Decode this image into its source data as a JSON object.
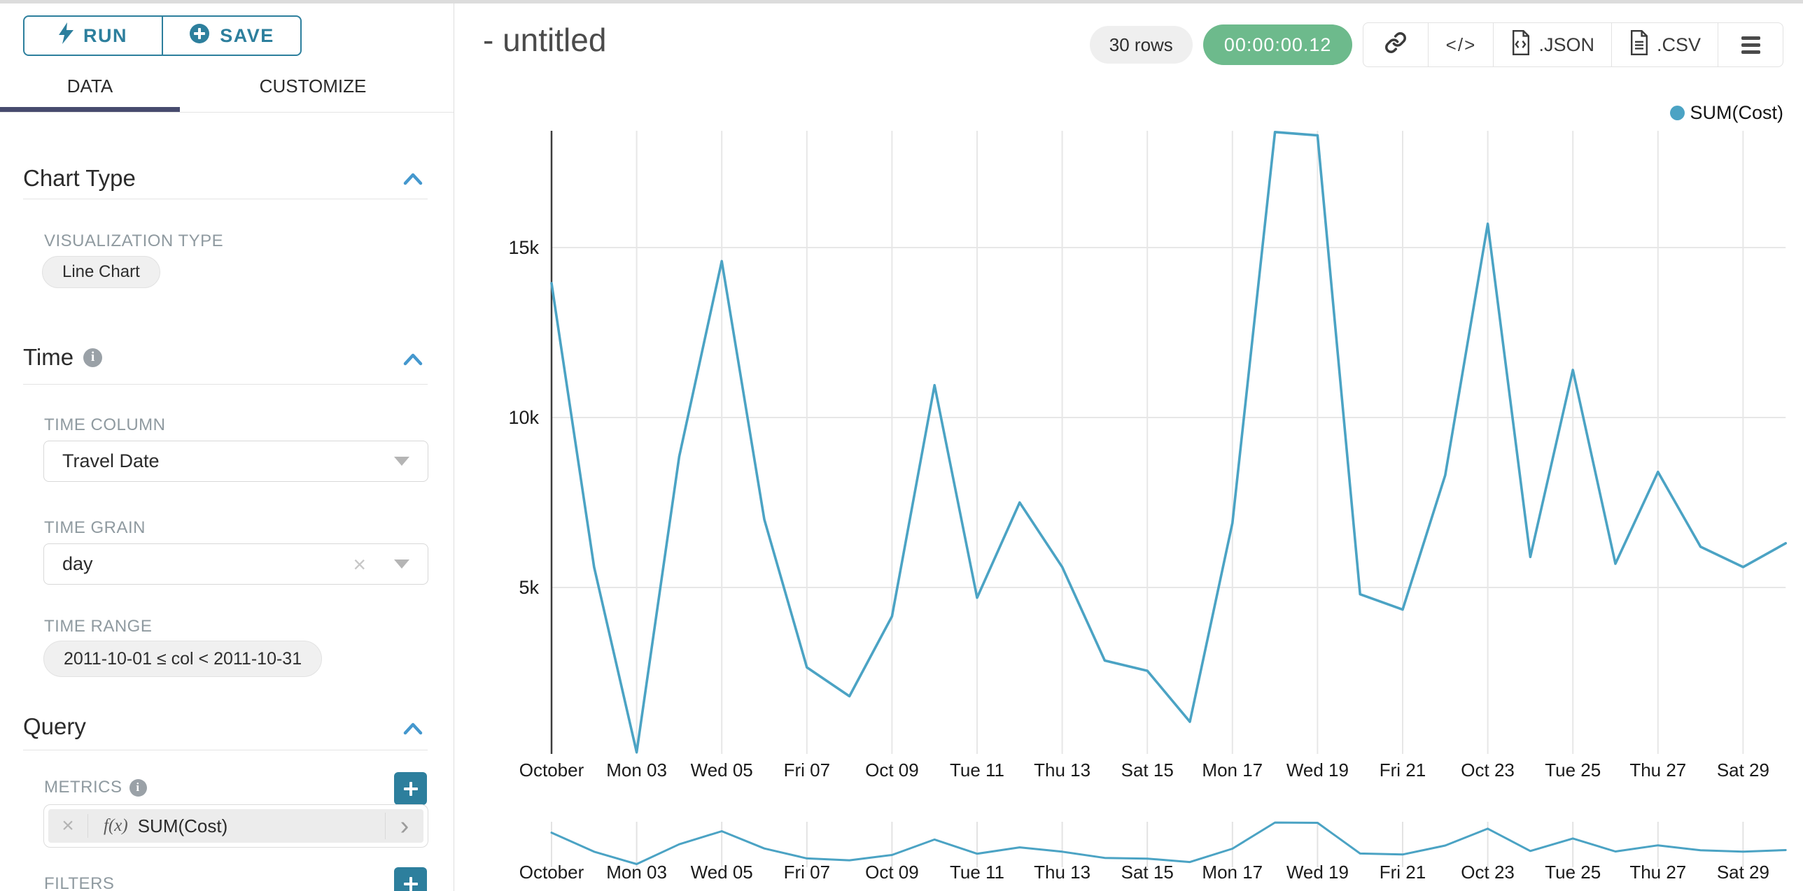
{
  "sidebar": {
    "run_label": "RUN",
    "save_label": "SAVE",
    "tabs": [
      {
        "label": "DATA"
      },
      {
        "label": "CUSTOMIZE"
      }
    ],
    "chart_type_section": {
      "title": "Chart Type",
      "visualization_type_label": "VISUALIZATION TYPE",
      "visualization_type_value": "Line Chart"
    },
    "time_section": {
      "title": "Time",
      "time_column_label": "TIME COLUMN",
      "time_column_value": "Travel Date",
      "time_grain_label": "TIME GRAIN",
      "time_grain_value": "day",
      "time_range_label": "TIME RANGE",
      "time_range_value": "2011-10-01 ≤ col < 2011-10-31"
    },
    "query_section": {
      "title": "Query",
      "metrics_label": "METRICS",
      "metric_function_prefix": "f(x)",
      "metric_value": "SUM(Cost)",
      "filters_label": "FILTERS"
    }
  },
  "header": {
    "title": "- untitled",
    "rows_badge": "30 rows",
    "timer_badge": "00:00:00.12",
    "code_glyph": "</>",
    "export_json_label": ".JSON",
    "export_csv_label": ".CSV"
  },
  "legend": {
    "label": "SUM(Cost)"
  },
  "icons": {
    "clear_x": "×",
    "chevron_right": "›",
    "info": "i"
  },
  "colors": {
    "primary_teal": "#2d7f9d",
    "section_chevron_blue": "#4598ce",
    "tab_underline_navy": "#474b6e",
    "series_line": "#4ba3c4",
    "timer_green": "#6dba8c",
    "badge_gray_bg": "#efefef"
  },
  "chart_data": {
    "type": "line",
    "title": "",
    "x_dates": [
      "2011-10-01",
      "2011-10-02",
      "2011-10-03",
      "2011-10-04",
      "2011-10-05",
      "2011-10-06",
      "2011-10-07",
      "2011-10-08",
      "2011-10-09",
      "2011-10-10",
      "2011-10-11",
      "2011-10-12",
      "2011-10-13",
      "2011-10-14",
      "2011-10-15",
      "2011-10-16",
      "2011-10-17",
      "2011-10-18",
      "2011-10-19",
      "2011-10-20",
      "2011-10-21",
      "2011-10-22",
      "2011-10-23",
      "2011-10-24",
      "2011-10-25",
      "2011-10-26",
      "2011-10-27",
      "2011-10-28",
      "2011-10-29",
      "2011-10-30"
    ],
    "series": [
      {
        "name": "SUM(Cost)",
        "color": "#4ba3c4",
        "values": [
          13950,
          5600,
          150,
          8850,
          14600,
          7000,
          2650,
          1800,
          4150,
          10950,
          4700,
          7500,
          5600,
          2850,
          2550,
          1050,
          6900,
          18400,
          18300,
          4800,
          4350,
          8300,
          15700,
          5900,
          11400,
          5700,
          8400,
          6200,
          5600,
          6300
        ]
      }
    ],
    "x_tick_labels": [
      "October",
      "Mon 03",
      "Wed 05",
      "Fri 07",
      "Oct 09",
      "Tue 11",
      "Thu 13",
      "Sat 15",
      "Mon 17",
      "Wed 19",
      "Fri 21",
      "Oct 23",
      "Tue 25",
      "Thu 27",
      "Sat 29"
    ],
    "x_tick_every": 2,
    "y_ticks": [
      {
        "label": "5k",
        "value": 5000
      },
      {
        "label": "10k",
        "value": 10000
      },
      {
        "label": "15k",
        "value": 15000
      }
    ],
    "ylim": [
      0,
      18440
    ],
    "grid": true,
    "legend": {
      "label": "SUM(Cost)",
      "position": "top-right"
    },
    "focus_brush_chart": true
  }
}
